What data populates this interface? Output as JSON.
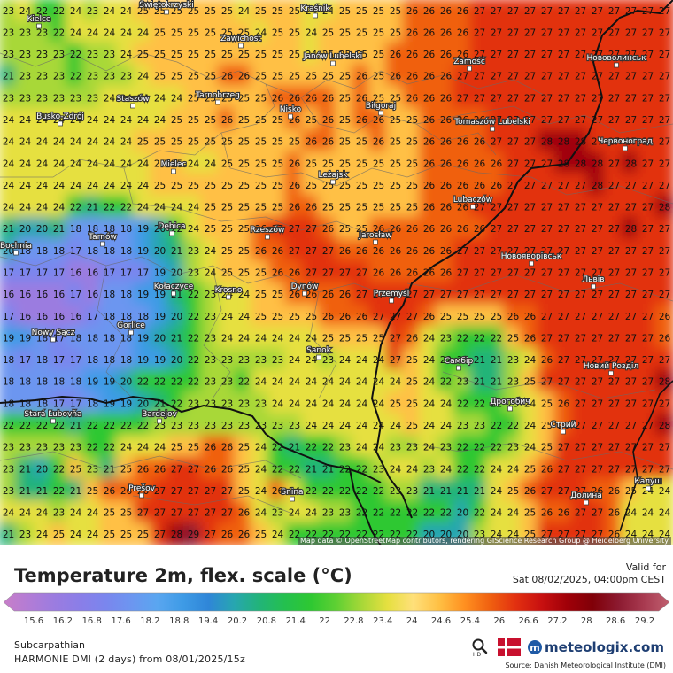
{
  "map": {
    "grid_values": [
      "23 24 22 22 24 23 24 24 25 25 25 25 25 25 24 25 25 25 24 24 25 25 25 25 26 26 26 26 27 27 27 27 27 27 27 27 27 27 27 27",
      "23 23 23 22 24 24 24 24 24 25 25 25 25 25 25 24 25 25 24 25 25 25 25 25 26 26 26 26 27 27 27 27 27 27 27 27 27 27 27 27",
      "23 23 23 23 22 23 23 24 25 25 25 25 25 25 25 25 25 25 24 25 25 25 25 26 26 26 26 26 27 27 27 27 27 27 27 27 27 27 27 27",
      "21 23 23 23 22 23 23 23 24 25 25 25 25 26 26 25 25 25 25 25 25 26 25 26 26 26 26 27 27 27 27 27 27 27 27 27 27 27 27 27",
      "23 23 23 23 23 23 24 24 24 24 24 25 25 25 25 25 26 26 26 26 25 26 25 25 26 26 26 27 27 27 27 27 27 27 27 27 27 27 27 27",
      "24 24 24 24 24 24 24 24 24 24 25 25 25 26 25 25 25 26 25 26 25 26 26 25 25 26 26 26 26 27 27 27 27 27 27 27 27 27 27 27",
      "24 24 24 24 24 24 24 24 25 25 25 25 25 25 25 25 25 25 26 26 25 25 26 25 25 26 26 26 26 27 27 27 28 28 28 27 27 27 27 27",
      "24 24 24 24 24 24 24 24 24 25 25 24 24 25 25 25 25 26 25 25 25 25 25 25 25 26 26 26 26 26 27 27 27 28 28 28 27 28 27 27",
      "24 24 24 24 24 24 24 24 24 25 25 25 25 25 25 25 25 26 25 25 25 25 25 25 25 26 26 26 26 26 27 27 27 27 27 28 27 27 27 27",
      "24 24 24 24 22 21 22 22 24 24 24 24 25 25 25 25 25 26 26 25 25 25 25 25 25 26 26 26 27 27 27 27 27 27 27 27 27 27 27 28",
      "21 20 20 21 18 18 18 18 19 20 22 24 25 25 25 26 27 27 27 26 25 25 26 26 26 26 26 26 26 27 27 27 27 27 27 27 27 28 27 27",
      "20 18 18 18 17 18 18 18 19 20 21 23 24 25 25 26 26 27 27 27 26 26 26 26 26 26 26 27 27 27 27 27 27 27 27 27 27 27 27 27",
      "17 17 17 17 16 16 17 17 17 19 20 23 24 25 25 25 26 26 27 27 27 27 26 26 26 26 26 27 27 27 27 27 27 27 27 27 27 27 27 27",
      "16 16 16 16 17 16 18 18 19 19 21 22 23 24 24 25 25 26 26 26 26 27 27 27 27 27 27 27 27 27 27 27 27 27 27 27 27 27 27 27",
      "17 16 16 16 16 17 18 18 18 19 20 22 23 24 24 25 25 25 25 26 26 26 27 27 27 26 25 25 25 25 26 26 27 27 27 27 27 27 27 26",
      "19 19 18 17 18 18 18 18 19 20 21 22 23 24 24 24 24 24 24 25 25 25 25 27 26 24 23 22 22 22 25 26 27 27 27 27 27 27 27 26",
      "18 17 18 17 17 18 18 18 19 19 20 22 23 23 23 23 23 24 24 23 24 24 24 27 25 24 22 22 21 21 23 24 26 27 27 27 27 27 27 27",
      "18 18 18 18 18 19 19 20 22 22 22 22 23 23 22 24 24 24 24 24 24 24 24 24 25 24 22 23 21 21 23 25 27 27 27 27 27 27 27 28",
      "18 18 18 17 17 18 19 19 20 21 22 23 23 23 23 23 24 24 24 24 24 24 24 25 25 24 24 22 22 22 23 24 25 26 27 27 27 27 27 27",
      "22 22 22 22 21 22 22 22 22 23 23 23 23 23 23 23 23 23 24 24 24 24 24 24 25 24 24 23 23 22 22 24 25 26 27 27 27 27 27 28",
      "23 23 23 23 23 22 22 24 24 24 25 25 26 26 25 24 22 21 22 22 23 24 24 23 23 24 23 22 22 22 23 24 25 27 27 27 27 27 27 27",
      "23 21 20 22 25 23 21 25 26 26 27 27 26 26 25 24 22 22 21 21 22 22 23 24 24 23 24 22 22 24 24 25 26 27 27 27 27 27 27 27",
      "23 21 21 22 21 25 26 26 26 27 27 27 27 27 25 24 26 24 22 22 22 22 22 23 23 21 21 21 21 24 25 26 27 27 27 26 26 25 24 24",
      "24 24 24 23 24 24 25 25 27 27 27 27 27 27 26 24 23 24 24 23 23 22 22 22 22 22 22 20 22 24 24 25 26 26 27 27 26 24 24 24",
      "21 23 24 25 24 24 25 25 25 27 28 29 27 26 26 25 24 22 22 22 22 22 22 22 22 20 20 20 23 24 24 25 27 27 27 27 26 24 24 24"
    ],
    "places": [
      {
        "name": "Kielce"
      },
      {
        "name": "Świętokrzyski"
      },
      {
        "name": "Kraśnik"
      },
      {
        "name": "Zawichost"
      },
      {
        "name": "Janów Lubelski"
      },
      {
        "name": "Zamość"
      },
      {
        "name": "Нововолинськ"
      },
      {
        "name": "Tarnobrzeg"
      },
      {
        "name": "Staszów"
      },
      {
        "name": "Busko-Zdrój"
      },
      {
        "name": "Nisko"
      },
      {
        "name": "Biłgoraj"
      },
      {
        "name": "Tomaszów Lubelski"
      },
      {
        "name": "Червоноград"
      },
      {
        "name": "Mielec"
      },
      {
        "name": "Leżajsk"
      },
      {
        "name": "Lubaczów"
      },
      {
        "name": "Tarnów"
      },
      {
        "name": "Dębica"
      },
      {
        "name": "Rzeszów"
      },
      {
        "name": "Jarosław"
      },
      {
        "name": "Новояворівськ"
      },
      {
        "name": "Bochnia"
      },
      {
        "name": "Kołaczyce"
      },
      {
        "name": "Dynów"
      },
      {
        "name": "Przemyśl"
      },
      {
        "name": "Львів"
      },
      {
        "name": "Gorlice"
      },
      {
        "name": "Krosno"
      },
      {
        "name": "Nowy Sącz"
      },
      {
        "name": "Sanok"
      },
      {
        "name": "Самбір"
      },
      {
        "name": "Новий Розділ"
      },
      {
        "name": "Дрогобич"
      },
      {
        "name": "Stará Ľubovňa"
      },
      {
        "name": "Bardejov"
      },
      {
        "name": "Стрий"
      },
      {
        "name": "Калуш"
      },
      {
        "name": "Prešov"
      },
      {
        "name": "Snina"
      },
      {
        "name": "Долина"
      }
    ],
    "attribution": "Map data © OpenStreetMap contributors, rendering GIScience Research Group @ Heidelberg University"
  },
  "legend": {
    "title": "Temperature 2m, flex. scale (°C)",
    "valid_label": "Valid for",
    "valid_time": "Sat 08/02/2025, 04:00pm CEST",
    "ticks": [
      "15.6",
      "16.2",
      "16.8",
      "17.6",
      "18.2",
      "18.8",
      "19.4",
      "20.2",
      "20.8",
      "21.4",
      "22",
      "22.8",
      "23.4",
      "24",
      "24.6",
      "25.4",
      "26",
      "26.6",
      "27.2",
      "28",
      "28.6",
      "29.2"
    ],
    "stops": [
      "#c87ec8",
      "#b27cd6",
      "#9b7ce0",
      "#8a7ee8",
      "#7a86ee",
      "#6c96f0",
      "#5aa6f0",
      "#3e9be6",
      "#2f86d8",
      "#27a6b0",
      "#22b478",
      "#24c04e",
      "#2ec832",
      "#5fd033",
      "#a8d838",
      "#e6e040",
      "#ffe07a",
      "#ffc044",
      "#ff9020",
      "#f06010",
      "#e23010",
      "#c81010",
      "#a00008",
      "#800008",
      "#8c1a30",
      "#a83a50",
      "#c06070"
    ]
  },
  "footer": {
    "region": "Subcarpathian",
    "model": "HARMONIE DMI (2 days) from 08/01/2025/15z",
    "brand": "meteologix.com",
    "source": "Source: Danish Meteorological Institute (DMI)",
    "hd_label": "HD",
    "zoom_icon": "magnifier-icon",
    "flag_icon": "denmark-flag-icon"
  }
}
